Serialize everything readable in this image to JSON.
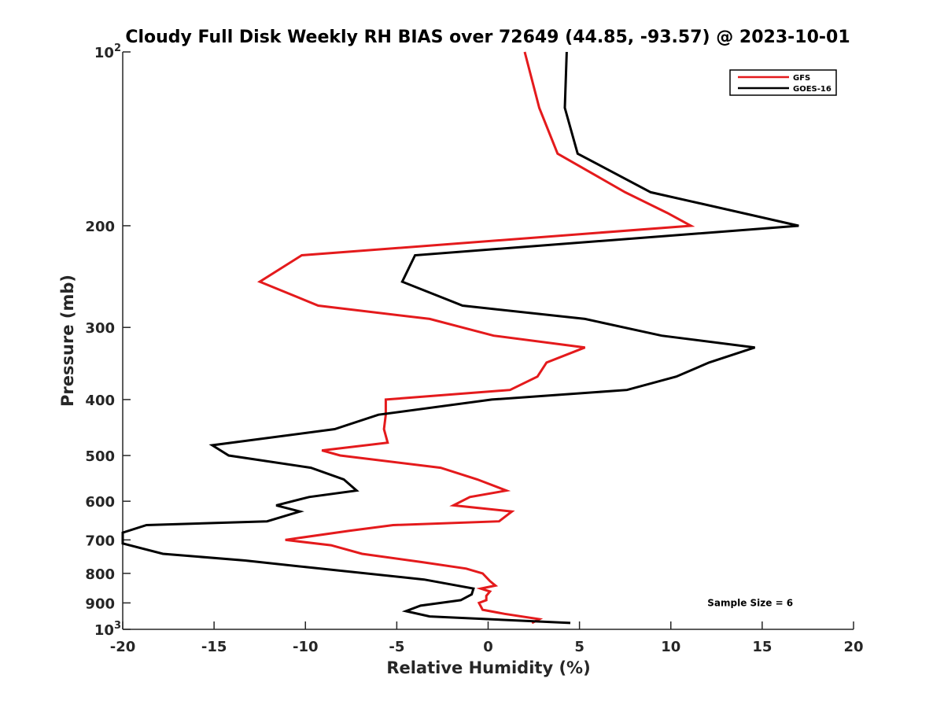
{
  "chart_data": {
    "type": "line",
    "title": "Cloudy Full Disk Weekly RH BIAS over 72649 (44.85, -93.57) @ 2023-10-01",
    "xlabel": "Relative Humidity (%)",
    "ylabel": "Pressure (mb)",
    "xlim": [
      -20,
      20
    ],
    "ylim": [
      100,
      1000
    ],
    "y_scale": "log",
    "y_reversed": true,
    "x_ticks": [
      "-20",
      "-15",
      "-10",
      "-5",
      "0",
      "5",
      "10",
      "15",
      "20"
    ],
    "y_ticks": [
      {
        "value": 100,
        "label": "10",
        "sup": "2"
      },
      {
        "value": 200,
        "label": "200"
      },
      {
        "value": 300,
        "label": "300"
      },
      {
        "value": 400,
        "label": "400"
      },
      {
        "value": 500,
        "label": "500"
      },
      {
        "value": 600,
        "label": "600"
      },
      {
        "value": 700,
        "label": "700"
      },
      {
        "value": 800,
        "label": "800"
      },
      {
        "value": 900,
        "label": "900"
      },
      {
        "value": 1000,
        "label": "10",
        "sup": "3"
      }
    ],
    "grid": false,
    "legend_position": "top-right",
    "series": [
      {
        "name": "GFS",
        "color": "#e41a1c",
        "points": [
          [
            2.0,
            100
          ],
          [
            2.8,
            125
          ],
          [
            3.8,
            150
          ],
          [
            7.5,
            175
          ],
          [
            9.8,
            190
          ],
          [
            11.1,
            200
          ],
          [
            -10.2,
            225
          ],
          [
            -12.5,
            250
          ],
          [
            -9.3,
            275
          ],
          [
            -3.2,
            290
          ],
          [
            0.3,
            310
          ],
          [
            5.3,
            325
          ],
          [
            3.2,
            345
          ],
          [
            2.7,
            365
          ],
          [
            1.2,
            385
          ],
          [
            -5.6,
            400
          ],
          [
            -5.6,
            425
          ],
          [
            -5.7,
            450
          ],
          [
            -5.5,
            475
          ],
          [
            -9.1,
            490
          ],
          [
            -8.1,
            500
          ],
          [
            -2.6,
            525
          ],
          [
            -0.6,
            550
          ],
          [
            1.0,
            575
          ],
          [
            -1.0,
            590
          ],
          [
            -1.9,
            610
          ],
          [
            1.3,
            625
          ],
          [
            0.6,
            650
          ],
          [
            -5.2,
            660
          ],
          [
            -7.6,
            675
          ],
          [
            -11.1,
            700
          ],
          [
            -8.6,
            715
          ],
          [
            -6.9,
            740
          ],
          [
            -3.6,
            765
          ],
          [
            -1.2,
            785
          ],
          [
            -0.3,
            800
          ],
          [
            0.1,
            825
          ],
          [
            0.4,
            840
          ],
          [
            -0.4,
            850
          ],
          [
            0.1,
            860
          ],
          [
            -0.1,
            875
          ],
          [
            -0.1,
            890
          ],
          [
            -0.5,
            900
          ],
          [
            -0.3,
            925
          ],
          [
            0.9,
            940
          ],
          [
            2.8,
            960
          ],
          [
            2.4,
            975
          ]
        ]
      },
      {
        "name": "GOES-16",
        "color": "#000000",
        "points": [
          [
            4.3,
            100
          ],
          [
            4.2,
            125
          ],
          [
            4.9,
            150
          ],
          [
            8.9,
            175
          ],
          [
            13.9,
            190
          ],
          [
            17.0,
            200
          ],
          [
            -4.0,
            225
          ],
          [
            -4.7,
            250
          ],
          [
            -1.4,
            275
          ],
          [
            5.3,
            290
          ],
          [
            9.5,
            310
          ],
          [
            14.6,
            325
          ],
          [
            12.1,
            345
          ],
          [
            10.3,
            365
          ],
          [
            7.6,
            385
          ],
          [
            0.2,
            400
          ],
          [
            -6.0,
            425
          ],
          [
            -8.4,
            450
          ],
          [
            -15.1,
            480
          ],
          [
            -14.2,
            500
          ],
          [
            -9.7,
            525
          ],
          [
            -7.9,
            550
          ],
          [
            -7.2,
            575
          ],
          [
            -9.8,
            590
          ],
          [
            -11.6,
            610
          ],
          [
            -10.3,
            625
          ],
          [
            -12.1,
            650
          ],
          [
            -18.7,
            660
          ],
          [
            -20.0,
            680
          ],
          [
            -20.0,
            710
          ],
          [
            -17.8,
            740
          ],
          [
            -13.3,
            760
          ],
          [
            -10.0,
            780
          ],
          [
            -3.5,
            820
          ],
          [
            -0.8,
            850
          ],
          [
            -0.9,
            870
          ],
          [
            -1.5,
            890
          ],
          [
            -3.7,
            910
          ],
          [
            -4.5,
            930
          ],
          [
            -3.2,
            950
          ],
          [
            4.5,
            975
          ]
        ]
      }
    ],
    "annotations": [
      {
        "text": "Sample Size = 6",
        "x": 14.5,
        "y": 900
      }
    ]
  }
}
